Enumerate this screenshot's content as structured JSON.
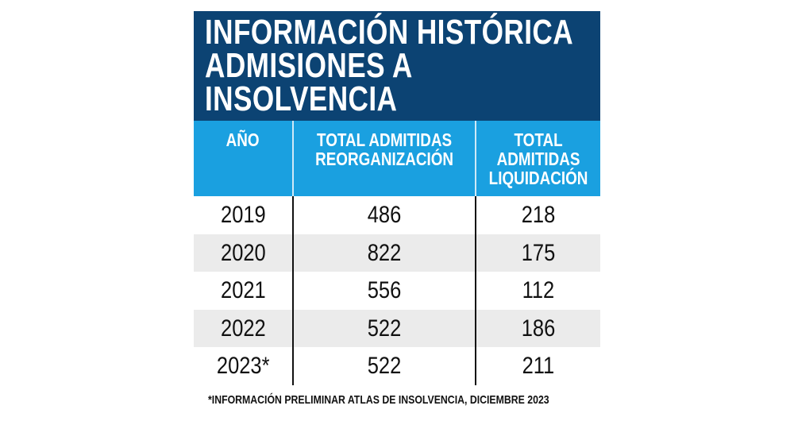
{
  "chart_data": {
    "type": "table",
    "title_lines": [
      "INFORMACIÓN HISTÓRICA",
      "ADMISIONES A",
      "INSOLVENCIA"
    ],
    "columns": [
      "AÑO",
      "TOTAL ADMITIDAS\nREORGANIZACIÓN",
      "TOTAL\nADMITIDAS\nLIQUIDACIÓN"
    ],
    "rows": [
      [
        "2019",
        "486",
        "218"
      ],
      [
        "2020",
        "822",
        "175"
      ],
      [
        "2021",
        "556",
        "112"
      ],
      [
        "2022",
        "522",
        "186"
      ],
      [
        "2023*",
        "522",
        "211"
      ]
    ],
    "footnote": "*INFORMACIÓN PRELIMINAR ATLAS DE INSOLVENCIA, DICIEMBRE 2023"
  },
  "colors": {
    "title_bg": "#0c4373",
    "header_bg": "#1aa0e0",
    "stripe": "#ebebeb"
  }
}
